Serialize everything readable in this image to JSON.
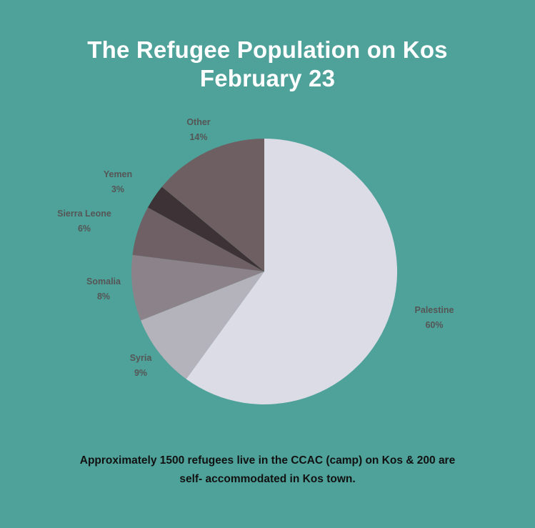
{
  "title": {
    "line1": "The Refugee Population on Kos",
    "line2": "February 23"
  },
  "chart_data": {
    "type": "pie",
    "title": "The Refugee Population on Kos February 23",
    "slices": [
      {
        "label": "Palestine",
        "value_label": "60%",
        "value": 60,
        "color": "#dcdce6"
      },
      {
        "label": "Syria",
        "value_label": "9%",
        "value": 9,
        "color": "#b4b2ba"
      },
      {
        "label": "Somalia",
        "value_label": "8%",
        "value": 8,
        "color": "#8b8389"
      },
      {
        "label": "Sierra Leone",
        "value_label": "6%",
        "value": 6,
        "color": "#6e6064"
      },
      {
        "label": "Yemen",
        "value_label": "3%",
        "value": 3,
        "color": "#3d3235"
      },
      {
        "label": "Other",
        "value_label": "14%",
        "value": 14,
        "color": "#6d5f62"
      }
    ],
    "label_color": "#555555"
  },
  "caption": {
    "line1": "Approximately 1500 refugees live in the CCAC (camp) on Kos & 200 are",
    "line2": "self- accommodated in Kos town."
  }
}
